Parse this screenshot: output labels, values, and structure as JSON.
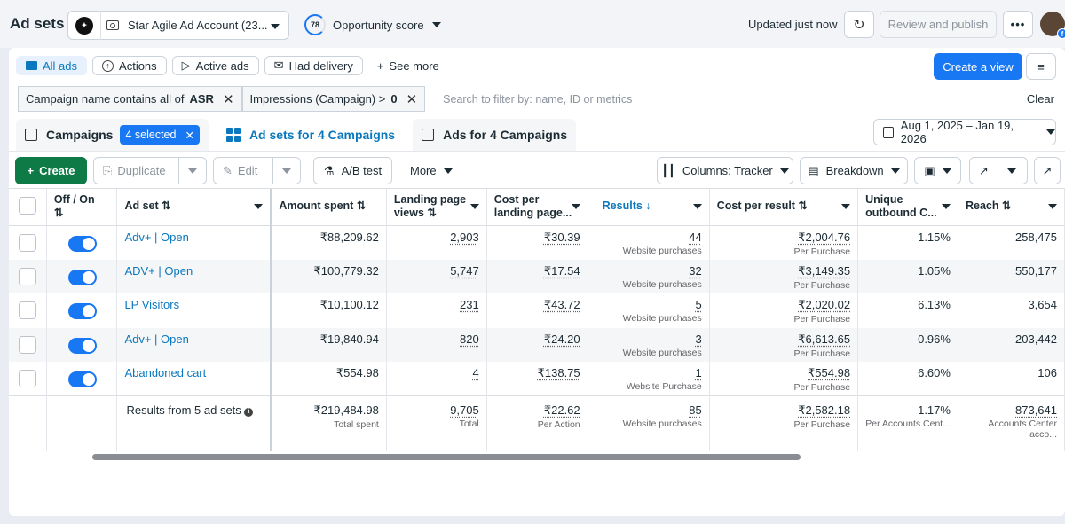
{
  "header": {
    "title": "Ad sets",
    "account_name": "Star Agile Ad Account (23...",
    "opportunity_score": "78",
    "opportunity_label": "Opportunity score",
    "updated_text": "Updated just now",
    "review_label": "Review and publish",
    "more_label": "•••",
    "avatar_badge": "f"
  },
  "filter_tabs": {
    "all_ads": "All ads",
    "actions": "Actions",
    "active_ads": "Active ads",
    "had_delivery": "Had delivery",
    "see_more": "See more",
    "create_view": "Create a view"
  },
  "filters": {
    "chip1_text": "Campaign name contains all of",
    "chip1_value": "ASR",
    "chip2_text": "Impressions (Campaign) >",
    "chip2_value": "0",
    "search_placeholder": "Search to filter by: name, ID or metrics",
    "clear_label": "Clear"
  },
  "level_tabs": {
    "campaigns": "Campaigns",
    "selected_badge": "4 selected",
    "adsets": "Ad sets for 4 Campaigns",
    "ads": "Ads for 4 Campaigns"
  },
  "date_range": "Aug 1, 2025 – Jan 19, 2026",
  "toolbar": {
    "create": "Create",
    "duplicate": "Duplicate",
    "edit": "Edit",
    "ab_test": "A/B test",
    "more": "More",
    "columns": "Columns: Tracker",
    "breakdown": "Breakdown"
  },
  "columns": {
    "off_on": "Off / On",
    "ad_set": "Ad set",
    "amount_spent": "Amount spent",
    "landing_views": "Landing page views",
    "cost_per_landing": "Cost per landing page...",
    "results": "Results",
    "cost_per_result": "Cost per result",
    "unique_outbound": "Unique outbound C...",
    "reach": "Reach"
  },
  "rows": [
    {
      "name": "Adv+ | Open",
      "spent": "₹88,209.62",
      "views": "2,903",
      "cpl": "₹30.39",
      "results": "44",
      "results_type": "Website purchases",
      "cpr": "₹2,004.76",
      "cpr_type": "Per Purchase",
      "ctr": "1.15%",
      "reach": "258,475"
    },
    {
      "name": "ADV+ | Open",
      "spent": "₹100,779.32",
      "views": "5,747",
      "cpl": "₹17.54",
      "results": "32",
      "results_type": "Website purchases",
      "cpr": "₹3,149.35",
      "cpr_type": "Per Purchase",
      "ctr": "1.05%",
      "reach": "550,177"
    },
    {
      "name": "LP Visitors",
      "spent": "₹10,100.12",
      "views": "231",
      "cpl": "₹43.72",
      "results": "5",
      "results_type": "Website purchases",
      "cpr": "₹2,020.02",
      "cpr_type": "Per Purchase",
      "ctr": "6.13%",
      "reach": "3,654"
    },
    {
      "name": "Adv+ | Open",
      "spent": "₹19,840.94",
      "views": "820",
      "cpl": "₹24.20",
      "results": "3",
      "results_type": "Website purchases",
      "cpr": "₹6,613.65",
      "cpr_type": "Per Purchase",
      "ctr": "0.96%",
      "reach": "203,442"
    },
    {
      "name": "Abandoned cart",
      "spent": "₹554.98",
      "views": "4",
      "cpl": "₹138.75",
      "results": "1",
      "results_type": "Website Purchase",
      "cpr": "₹554.98",
      "cpr_type": "Per Purchase",
      "ctr": "6.60%",
      "reach": "106"
    }
  ],
  "totals": {
    "label": "Results from 5 ad sets",
    "spent": "₹219,484.98",
    "spent_sub": "Total spent",
    "views": "9,705",
    "views_sub": "Total",
    "cpl": "₹22.62",
    "cpl_sub": "Per Action",
    "results": "85",
    "results_sub": "Website purchases",
    "cpr": "₹2,582.18",
    "cpr_sub": "Per Purchase",
    "ctr": "1.17%",
    "ctr_sub": "Per Accounts Cent...",
    "reach": "873,641",
    "reach_sub": "Accounts Center acco..."
  }
}
